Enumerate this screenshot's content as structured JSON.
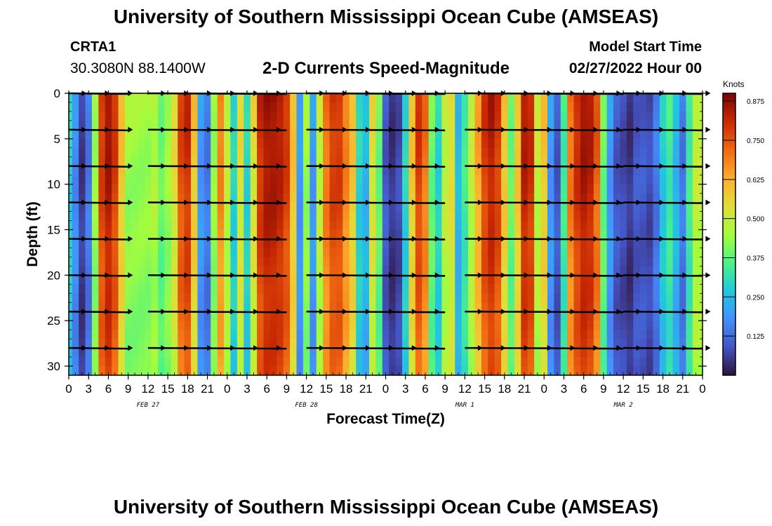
{
  "header": {
    "title": "University of Southern Mississippi Ocean Cube (AMSEAS)",
    "station_id": "CRTA1",
    "coordinates": "30.3080N  88.1400W",
    "subtitle": "2-D Currents Speed-Magnitude",
    "start_label": "Model Start Time",
    "start_value": "02/27/2022 Hour 00"
  },
  "footer": {
    "title": "University of Southern Mississippi Ocean Cube (AMSEAS)"
  },
  "chart_data": {
    "type": "heatmap",
    "title": "2-D Currents Speed-Magnitude",
    "xlabel": "Forecast Time(Z)",
    "ylabel": "Depth (ft)",
    "x_range_hours": [
      0,
      96
    ],
    "y_range_ft": [
      0,
      31
    ],
    "y_ticks": [
      0,
      5,
      10,
      15,
      20,
      25,
      30
    ],
    "x_tick_hours": [
      0,
      3,
      6,
      9,
      12,
      15,
      18,
      21,
      24,
      27,
      30,
      33,
      36,
      39,
      42,
      45,
      48,
      51,
      54,
      57,
      60,
      63,
      66,
      69,
      72,
      75,
      78,
      81,
      84,
      87,
      90,
      93,
      96
    ],
    "x_tick_labels": [
      "0",
      "3",
      "6",
      "9",
      "12",
      "15",
      "18",
      "21",
      "0",
      "3",
      "6",
      "9",
      "12",
      "15",
      "18",
      "21",
      "0",
      "3",
      "6",
      "9",
      "12",
      "15",
      "18",
      "21",
      "0",
      "3",
      "6",
      "9",
      "12",
      "15",
      "18",
      "21",
      "0"
    ],
    "date_labels": [
      {
        "hour": 12,
        "text": "FEB 27"
      },
      {
        "hour": 36,
        "text": "FEB 28"
      },
      {
        "hour": 60,
        "text": "MAR 1"
      },
      {
        "hour": 84,
        "text": "MAR 2"
      }
    ],
    "colorbar": {
      "units": "Knots",
      "min": 0.0,
      "max": 0.9,
      "ticks": [
        0.125,
        0.25,
        0.375,
        0.5,
        0.625,
        0.75,
        0.875
      ],
      "tick_labels": [
        "0.125",
        "0.250",
        "0.375",
        "0.500",
        "0.625",
        "0.750",
        "0.875"
      ]
    },
    "vector_depths_ft": [
      0,
      4,
      8,
      12,
      16,
      20,
      24,
      28
    ],
    "vector_segments_hours": [
      [
        0,
        9
      ],
      [
        12,
        33
      ],
      [
        36,
        57
      ],
      [
        60,
        84
      ],
      [
        84,
        96
      ]
    ],
    "speed_profile": {
      "description": "surface speed (knots) vs forecast hour",
      "hours": [
        0,
        1,
        2,
        3,
        4,
        5,
        6,
        7,
        8,
        9,
        10,
        11,
        12,
        13,
        14,
        15,
        16,
        17,
        18,
        19,
        20,
        21,
        22,
        23,
        24,
        25,
        26,
        27,
        28,
        29,
        30,
        31,
        32,
        33,
        34,
        35,
        36,
        37,
        38,
        39,
        40,
        41,
        42,
        43,
        44,
        45,
        46,
        47,
        48,
        49,
        50,
        51,
        52,
        53,
        54,
        55,
        56,
        57,
        58,
        59,
        60,
        61,
        62,
        63,
        64,
        65,
        66,
        67,
        68,
        69,
        70,
        71,
        72,
        73,
        74,
        75,
        76,
        77,
        78,
        79,
        80,
        81,
        82,
        83,
        84,
        85,
        86,
        87,
        88,
        89,
        90,
        91,
        92,
        93,
        94,
        95,
        96
      ],
      "speeds": [
        0.3,
        0.18,
        0.06,
        0.15,
        0.45,
        0.8,
        0.87,
        0.8,
        0.6,
        0.45,
        0.45,
        0.45,
        0.45,
        0.48,
        0.4,
        0.45,
        0.55,
        0.78,
        0.82,
        0.6,
        0.2,
        0.15,
        0.45,
        0.7,
        0.5,
        0.3,
        0.55,
        0.3,
        0.55,
        0.82,
        0.87,
        0.87,
        0.85,
        0.8,
        0.6,
        0.2,
        0.45,
        0.2,
        0.5,
        0.72,
        0.8,
        0.8,
        0.7,
        0.6,
        0.3,
        0.25,
        0.55,
        0.4,
        0.1,
        0.05,
        0.08,
        0.3,
        0.6,
        0.8,
        0.72,
        0.4,
        0.3,
        0.5,
        0.55,
        0.25,
        0.35,
        0.5,
        0.65,
        0.8,
        0.85,
        0.8,
        0.6,
        0.4,
        0.6,
        0.85,
        0.82,
        0.5,
        0.6,
        0.2,
        0.1,
        0.35,
        0.72,
        0.82,
        0.87,
        0.85,
        0.75,
        0.4,
        0.2,
        0.1,
        0.08,
        0.05,
        0.1,
        0.1,
        0.08,
        0.15,
        0.28,
        0.35,
        0.25,
        0.15,
        0.35,
        0.5,
        0.5
      ]
    }
  }
}
